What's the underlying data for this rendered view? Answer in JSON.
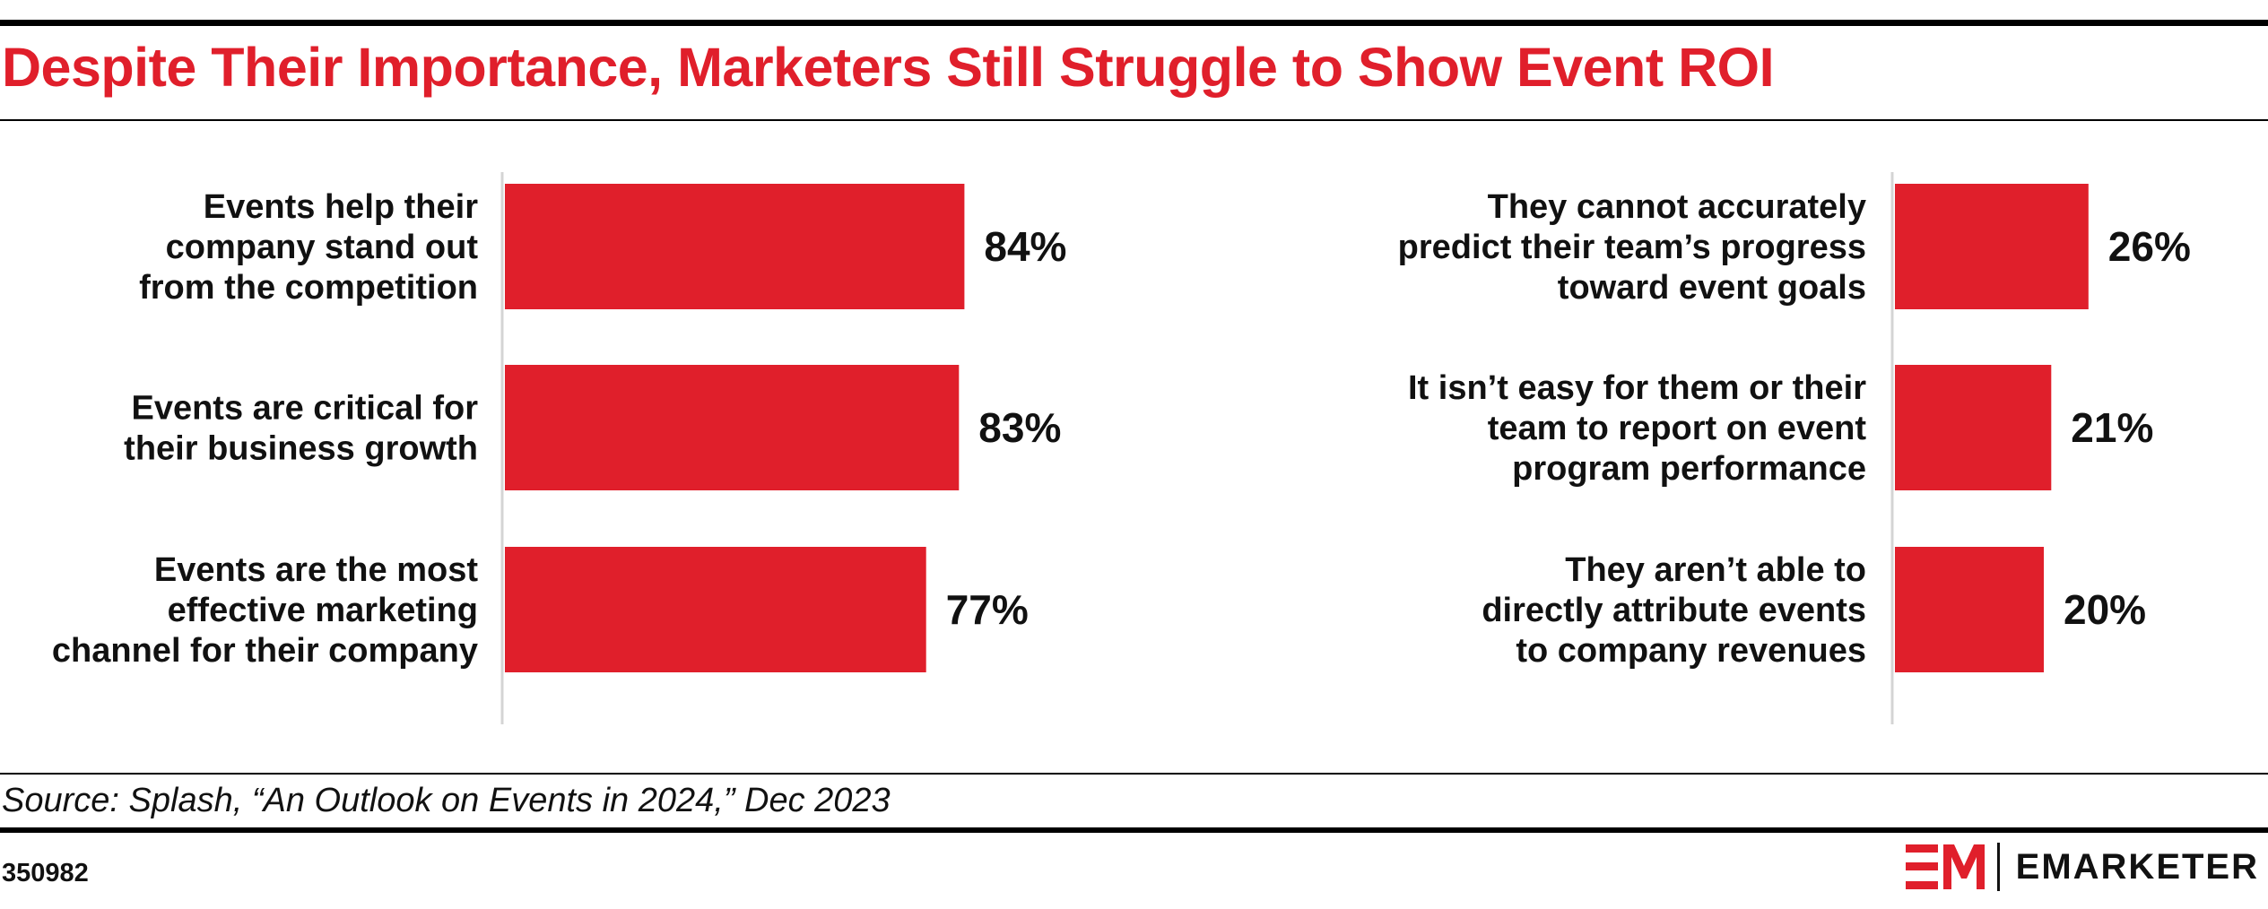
{
  "title": "Despite Their Importance, Marketers Still Struggle to Show Event ROI",
  "source": "Source: Splash, “An Outlook on Events in 2024,” Dec 2023",
  "chart_id": "350982",
  "brand": {
    "name": "EMARKETER",
    "color": "#e01f2b"
  },
  "chart_data": [
    {
      "type": "bar",
      "orientation": "horizontal",
      "categories": [
        [
          "Events help their",
          "company stand out",
          "from the competition"
        ],
        [
          "Events are critical for",
          "their business growth"
        ],
        [
          "Events are the most",
          "effective marketing",
          "channel for their company"
        ]
      ],
      "values": [
        84,
        83,
        77
      ],
      "value_labels": [
        "84%",
        "83%",
        "77%"
      ],
      "bar_color": "#e01f2b",
      "xlim": [
        0,
        100
      ],
      "grid": false
    },
    {
      "type": "bar",
      "orientation": "horizontal",
      "categories": [
        [
          "They cannot accurately",
          "predict their team’s progress",
          "toward event goals"
        ],
        [
          "It isn’t easy for them or their",
          "team to report on event",
          "program performance"
        ],
        [
          "They aren’t able to",
          "directly attribute events",
          "to company revenues"
        ]
      ],
      "values": [
        26,
        21,
        20
      ],
      "value_labels": [
        "26%",
        "21%",
        "20%"
      ],
      "bar_color": "#e01f2b",
      "xlim": [
        0,
        100
      ],
      "grid": false
    }
  ]
}
